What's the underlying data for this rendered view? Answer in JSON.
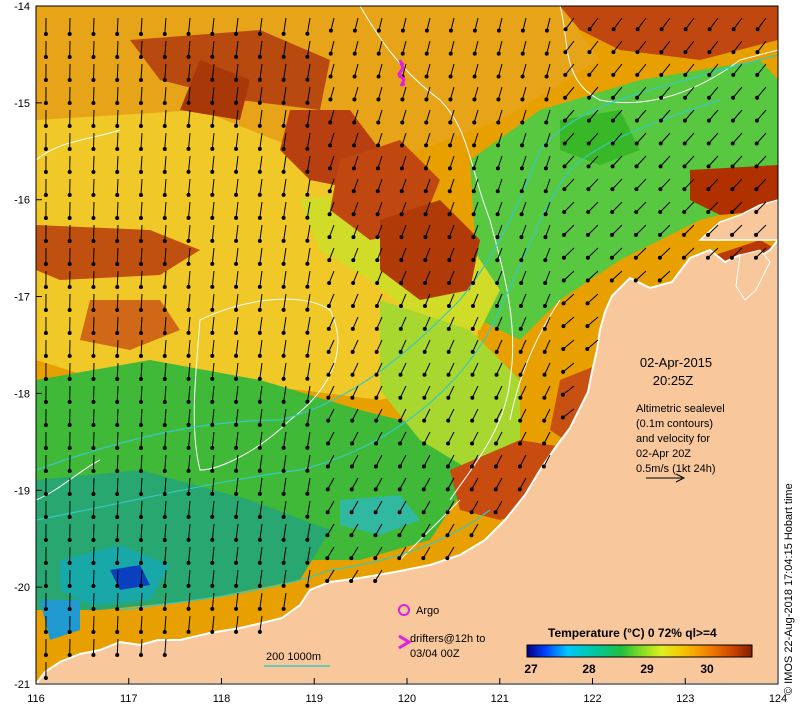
{
  "map": {
    "x_axis": {
      "min": 116,
      "max": 124,
      "ticks": [
        "116",
        "117",
        "118",
        "119",
        "120",
        "121",
        "122",
        "123",
        "124"
      ]
    },
    "y_axis": {
      "min": -21,
      "max": -14,
      "ticks": [
        "-14",
        "-15",
        "-16",
        "-17",
        "-18",
        "-19",
        "-20",
        "-21"
      ]
    }
  },
  "info": {
    "date": "02-Apr-2015",
    "time": "20:25Z",
    "description_lines": [
      "Altimetric sealevel",
      "(0.1m contours)",
      "and velocity for",
      "02-Apr 20Z",
      "0.5m/s (1kt 24h)"
    ]
  },
  "legend": {
    "argo_label": "Argo",
    "drifters_line1": "drifters@12h to",
    "drifters_line2": "03/04 00Z",
    "bathymetry_label": "200  1000m"
  },
  "colorbar": {
    "title": "Temperature (°C) 0 72% ql>=4",
    "ticks": [
      "27",
      "28",
      "29",
      "30"
    ]
  },
  "credit": "© IMOS 22-Aug-2018 17:04:15 Hobart time",
  "colors": {
    "land": "#f8c89c",
    "coast": "#ffffff",
    "contour": "#ffffff",
    "isobath": "#38c8c0",
    "argo": "#e020e0",
    "drifter": "#e020e0"
  }
}
